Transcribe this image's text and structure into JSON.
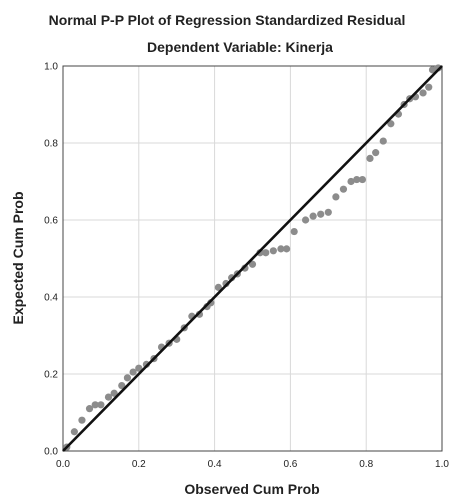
{
  "chart_data": {
    "type": "scatter",
    "title": "Normal P-P Plot of Regression Standardized Residual",
    "subtitle": "Dependent Variable: Kinerja",
    "xlabel": "Observed Cum Prob",
    "ylabel": "Expected Cum Prob",
    "xlim": [
      0,
      1
    ],
    "ylim": [
      0,
      1
    ],
    "xticks": [
      "0.0",
      "0.2",
      "0.4",
      "0.6",
      "0.8",
      "1.0"
    ],
    "yticks": [
      "0.0",
      "0.2",
      "0.4",
      "0.6",
      "0.8",
      "1.0"
    ],
    "grid": true,
    "reference_line": [
      [
        0,
        0
      ],
      [
        1,
        1
      ]
    ],
    "colors": {
      "points": "#8c8c8c",
      "line": "#111111",
      "grid": "#d9d9d9"
    },
    "points": [
      [
        0.01,
        0.01
      ],
      [
        0.03,
        0.05
      ],
      [
        0.05,
        0.08
      ],
      [
        0.07,
        0.11
      ],
      [
        0.085,
        0.12
      ],
      [
        0.1,
        0.12
      ],
      [
        0.12,
        0.14
      ],
      [
        0.135,
        0.15
      ],
      [
        0.155,
        0.17
      ],
      [
        0.17,
        0.19
      ],
      [
        0.185,
        0.205
      ],
      [
        0.2,
        0.215
      ],
      [
        0.22,
        0.225
      ],
      [
        0.24,
        0.24
      ],
      [
        0.26,
        0.27
      ],
      [
        0.28,
        0.28
      ],
      [
        0.3,
        0.29
      ],
      [
        0.32,
        0.32
      ],
      [
        0.34,
        0.35
      ],
      [
        0.36,
        0.355
      ],
      [
        0.38,
        0.375
      ],
      [
        0.39,
        0.385
      ],
      [
        0.41,
        0.425
      ],
      [
        0.43,
        0.435
      ],
      [
        0.445,
        0.45
      ],
      [
        0.46,
        0.46
      ],
      [
        0.48,
        0.475
      ],
      [
        0.5,
        0.485
      ],
      [
        0.52,
        0.515
      ],
      [
        0.535,
        0.515
      ],
      [
        0.555,
        0.52
      ],
      [
        0.575,
        0.525
      ],
      [
        0.59,
        0.525
      ],
      [
        0.61,
        0.57
      ],
      [
        0.64,
        0.6
      ],
      [
        0.66,
        0.61
      ],
      [
        0.68,
        0.615
      ],
      [
        0.7,
        0.62
      ],
      [
        0.72,
        0.66
      ],
      [
        0.74,
        0.68
      ],
      [
        0.76,
        0.7
      ],
      [
        0.775,
        0.705
      ],
      [
        0.79,
        0.705
      ],
      [
        0.81,
        0.76
      ],
      [
        0.825,
        0.775
      ],
      [
        0.845,
        0.805
      ],
      [
        0.865,
        0.85
      ],
      [
        0.885,
        0.875
      ],
      [
        0.9,
        0.9
      ],
      [
        0.915,
        0.915
      ],
      [
        0.93,
        0.92
      ],
      [
        0.95,
        0.93
      ],
      [
        0.965,
        0.945
      ],
      [
        0.975,
        0.99
      ],
      [
        0.99,
        0.995
      ]
    ]
  }
}
